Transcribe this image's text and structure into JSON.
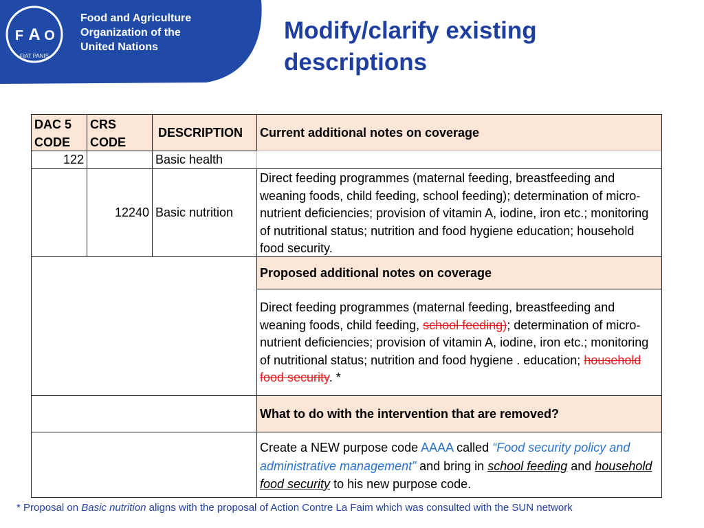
{
  "header": {
    "organization": [
      "Food and Agriculture",
      "Organization of the",
      "United Nations"
    ],
    "logo": {
      "letters": [
        "F",
        "A",
        "O"
      ],
      "motto": "FIAT PANIS"
    }
  },
  "title": "Modify/clarify existing descriptions",
  "table": {
    "columns": [
      "DAC 5 CODE",
      "CRS CODE",
      "DESCRIPTION",
      "Current additional notes on coverage"
    ],
    "rows": [
      {
        "dac5": "122",
        "description": "Basic health"
      },
      {
        "crs": "12240",
        "description": "Basic nutrition",
        "notes": "Direct feeding programmes (maternal feeding, breastfeeding and weaning foods, child feeding, school feeding); determination of micro-nutrient deficiencies; provision of vitamin A, iodine, iron etc.; monitoring of nutritional status; nutrition and food hygiene education; household food security."
      }
    ],
    "sections": [
      {
        "heading": "Proposed additional notes on coverage",
        "segments": [
          {
            "text": "Direct feeding programmes (maternal feeding, breastfeeding and weaning foods, child feeding, ",
            "style": "normal"
          },
          {
            "text": "school feeding)",
            "style": "deleted"
          },
          {
            "text": "; determination of micro-nutrient deficiencies; provision of vitamin A, iodine, iron etc.; monitoring of nutritional status; nutrition and food hygiene . education; ",
            "style": "normal"
          },
          {
            "text": "household food security",
            "style": "deleted"
          },
          {
            "text": ". *",
            "style": "normal"
          }
        ]
      },
      {
        "heading": "What to do with the intervention that are removed?",
        "segments": [
          {
            "text": "Create a NEW purpose code ",
            "style": "normal"
          },
          {
            "text": "AAAA",
            "style": "blue"
          },
          {
            "text": " called ",
            "style": "normal"
          },
          {
            "text": "“Food security policy and administrative management”",
            "style": "blue-italic"
          },
          {
            "text": " and bring in ",
            "style": "normal"
          },
          {
            "text": "school feeding",
            "style": "underline-italic"
          },
          {
            "text": " and ",
            "style": "normal"
          },
          {
            "text": "household food security",
            "style": "underline-italic"
          },
          {
            "text": " to his new purpose code.",
            "style": "normal"
          }
        ]
      }
    ]
  },
  "footnote": [
    {
      "text": "* Proposal on ",
      "style": "normal"
    },
    {
      "text": "Basic nutrition",
      "style": "italic"
    },
    {
      "text": " aligns with the proposal of Action Contre La Faim which was consulted with the SUN network",
      "style": "normal"
    }
  ]
}
